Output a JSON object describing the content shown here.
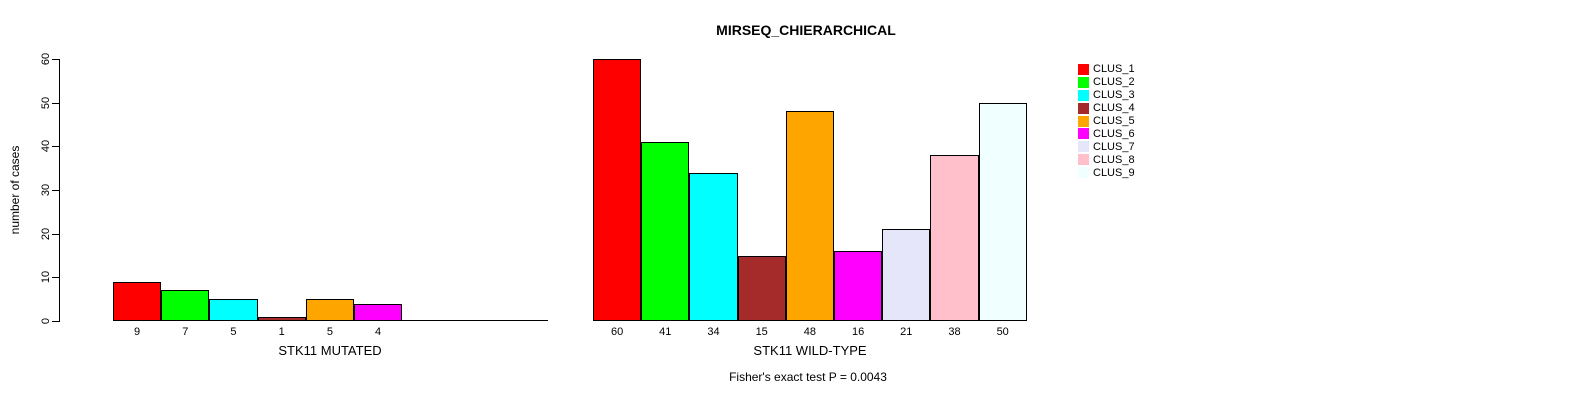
{
  "chart_data": {
    "type": "bar",
    "title": "MIRSEQ_CHIERARCHICAL",
    "ylabel": "number of cases",
    "ylim": [
      0,
      60
    ],
    "yticks": [
      0,
      10,
      20,
      30,
      40,
      50,
      60
    ],
    "grid": false,
    "legend_position": "right",
    "categories": [
      "CLUS_1",
      "CLUS_2",
      "CLUS_3",
      "CLUS_4",
      "CLUS_5",
      "CLUS_6",
      "CLUS_7",
      "CLUS_8",
      "CLUS_9"
    ],
    "colors": [
      "#FF0000",
      "#00FF00",
      "#00FFFF",
      "#A52A2A",
      "#FFA500",
      "#FF00FF",
      "#E6E6FA",
      "#FFC0CB",
      "#F0FFFF"
    ],
    "groups": [
      {
        "xlabel": "STK11 MUTATED",
        "values": [
          9,
          7,
          5,
          1,
          5,
          4,
          0,
          0,
          0
        ]
      },
      {
        "xlabel": "STK11 WILD-TYPE",
        "values": [
          60,
          41,
          34,
          15,
          48,
          16,
          21,
          38,
          50
        ]
      }
    ],
    "annotation": "Fisher's exact test P = 0.0043"
  }
}
